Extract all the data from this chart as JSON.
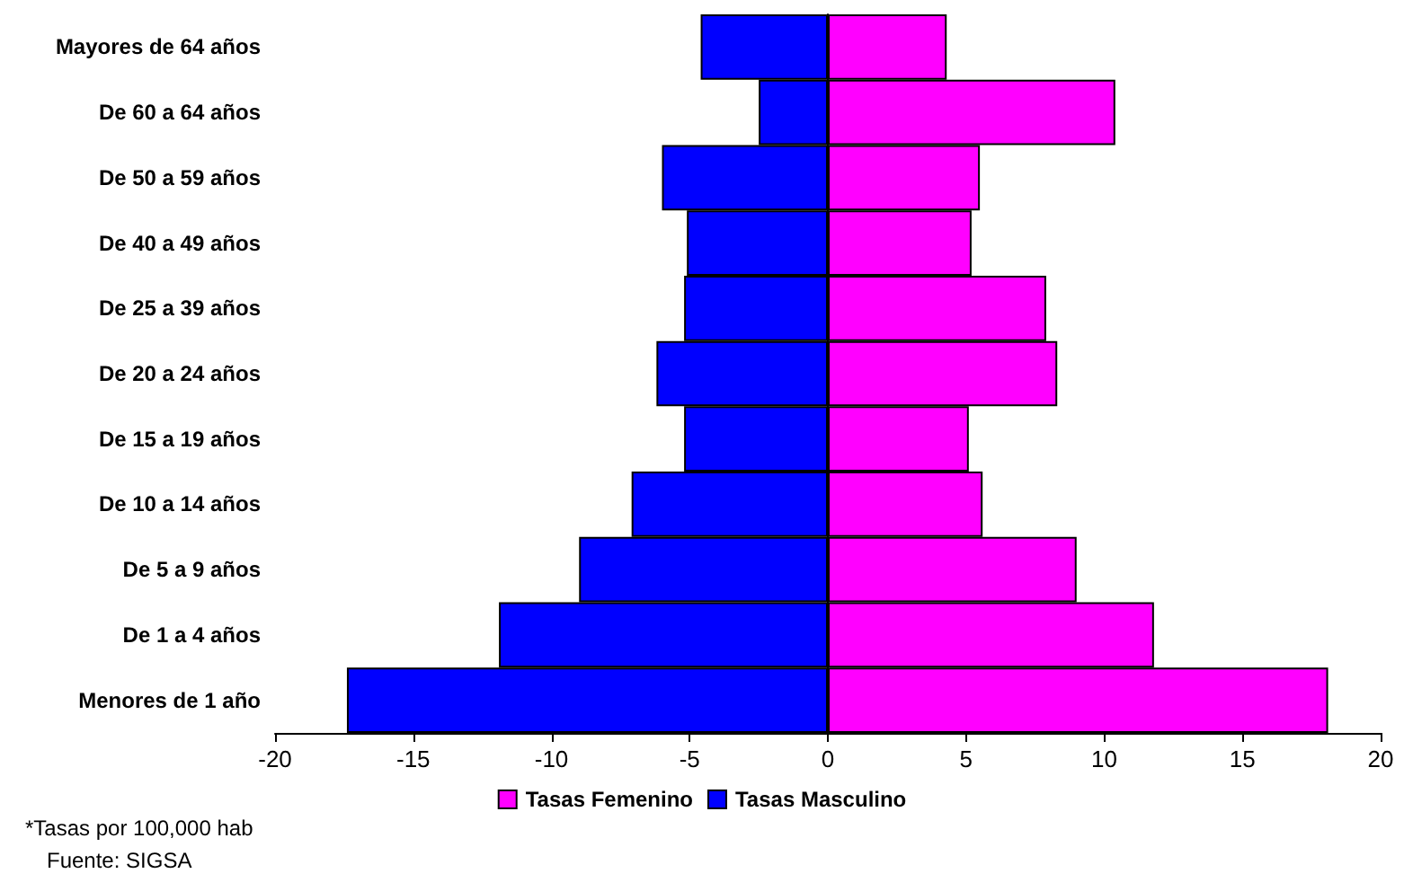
{
  "chart_data": {
    "type": "bar",
    "orientation": "horizontal",
    "categories": [
      "Mayores de 64 años",
      "De 60 a 64 años",
      "De 50 a 59 años",
      "De 40 a 49 años",
      "De 25 a 39 años",
      "De 20 a 24 años",
      "De 15 a 19 años",
      "De 10 a 14 años",
      "De 5 a 9 años",
      "De 1 a 4 años",
      "Menores de 1 año"
    ],
    "series": [
      {
        "name": "Tasas Femenino",
        "color": "#ff00ff",
        "values": [
          4.3,
          10.4,
          5.5,
          5.2,
          7.9,
          8.3,
          5.1,
          5.6,
          9.0,
          11.8,
          18.1
        ]
      },
      {
        "name": "Tasas Masculino",
        "color": "#0000ff",
        "values": [
          -4.6,
          -2.5,
          -6.0,
          -5.1,
          -5.2,
          -6.2,
          -5.2,
          -7.1,
          -9.0,
          -11.9,
          -17.4
        ]
      }
    ],
    "xlim": [
      -20,
      20
    ],
    "xticks": [
      -20,
      -15,
      -10,
      -5,
      0,
      5,
      10,
      15,
      20
    ],
    "stacked": true,
    "legend": "bottom",
    "annotations": [
      "*Tasas por 100,000 hab",
      "Fuente: SIGSA"
    ]
  }
}
